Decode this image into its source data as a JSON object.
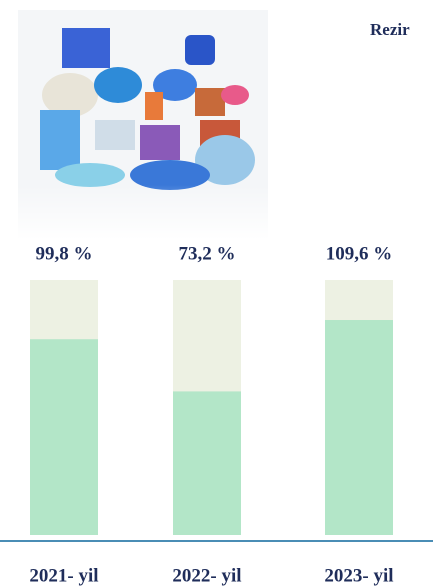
{
  "chart_data": {
    "type": "bar",
    "title": "Rezir",
    "categories": [
      "2021- yil",
      "2022- yil",
      "2023- yil"
    ],
    "values": [
      99.8,
      73.2,
      109.6
    ],
    "value_labels": [
      "99,8 %",
      "73,2 %",
      "109,6 %"
    ],
    "color": "#b3e6c8",
    "track_color": "#edf1e3",
    "baseline_color": "#4a8db5",
    "ylim": [
      0,
      130
    ]
  }
}
